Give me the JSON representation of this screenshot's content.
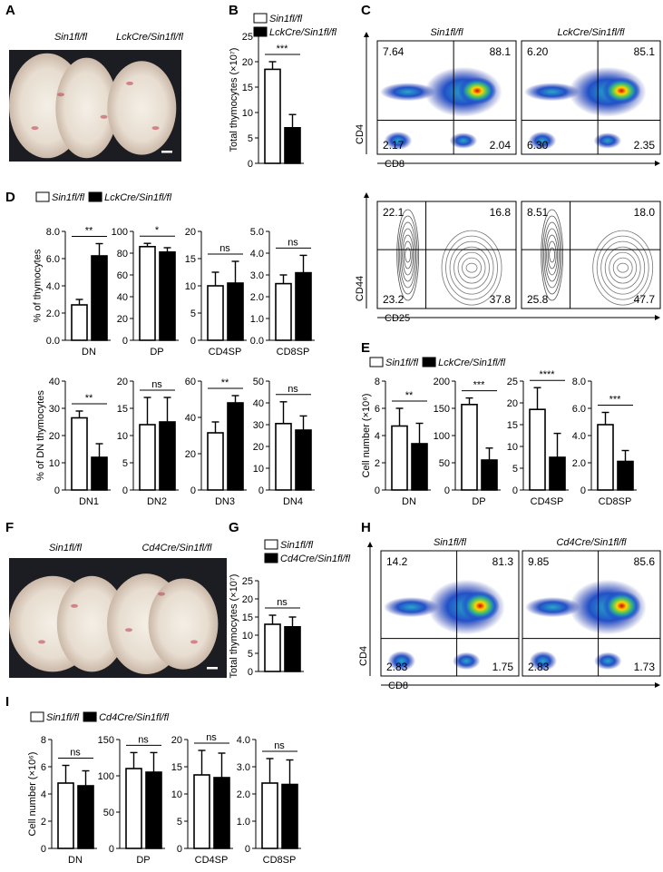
{
  "panel_letters": [
    "A",
    "B",
    "C",
    "D",
    "E",
    "F",
    "G",
    "H",
    "I"
  ],
  "photos": [
    {
      "labels": [
        "Sin1fl/fl",
        "LckCre/Sin1fl/fl"
      ]
    },
    {
      "labels": [
        "Sin1fl/fl",
        "Cd4Cre/Sin1fl/fl"
      ]
    }
  ],
  "legends": [
    {
      "items": [
        "Sin1fl/fl",
        "LckCre/Sin1fl/fl"
      ]
    },
    {
      "items": [
        "Sin1fl/fl",
        "LckCre/Sin1fl/fl"
      ]
    },
    {
      "items": [
        "Sin1fl/fl",
        "LckCre/Sin1fl/fl"
      ]
    },
    {
      "items": [
        "Sin1fl/fl",
        "Cd4Cre/Sin1fl/fl"
      ]
    },
    {
      "items": [
        "Sin1fl/fl",
        "Cd4Cre/Sin1fl/fl"
      ]
    }
  ],
  "flow": [
    {
      "style": "density",
      "x_label": "CD8",
      "y_label": "CD4",
      "plots": [
        {
          "title": "Sin1fl/fl",
          "quadrants": [
            "7.64",
            "88.1",
            "2.17",
            "2.04"
          ]
        },
        {
          "title": "LckCre/Sin1fl/fl",
          "quadrants": [
            "6.20",
            "85.1",
            "6.30",
            "2.35"
          ]
        }
      ]
    },
    {
      "style": "contour",
      "x_label": "CD25",
      "y_label": "CD44",
      "plots": [
        {
          "quadrants": [
            "22.1",
            "16.8",
            "23.2",
            "37.8"
          ]
        },
        {
          "quadrants": [
            "8.51",
            "18.0",
            "25.8",
            "47.7"
          ]
        }
      ]
    },
    {
      "style": "density",
      "x_label": "CD8",
      "y_label": "CD4",
      "plots": [
        {
          "title": "Sin1fl/fl",
          "quadrants": [
            "14.2",
            "81.3",
            "2.83",
            "1.75"
          ]
        },
        {
          "title": "Cd4Cre/Sin1fl/fl",
          "quadrants": [
            "9.85",
            "85.6",
            "2.83",
            "1.73"
          ]
        }
      ]
    }
  ],
  "chart_data": [
    {
      "type": "bar",
      "ylabel": "Total thymocytes (×10⁷)",
      "annotation": "***",
      "ylim": [
        0,
        25
      ],
      "yticks": [
        0,
        5,
        10,
        15,
        20,
        25
      ],
      "series": [
        {
          "color": "#ffffff",
          "values": [
            18.5
          ],
          "errors": [
            1.5
          ]
        },
        {
          "color": "#000000",
          "values": [
            7
          ],
          "errors": [
            2.6
          ]
        }
      ]
    },
    {
      "type": "bar",
      "ylabel": "% of thymocytes",
      "categories": [
        "DN"
      ],
      "annotation": "**",
      "ylim": [
        0,
        8
      ],
      "yticks": [
        {
          "value": 0,
          "label": "0.0"
        },
        {
          "value": 2,
          "label": "2.0"
        },
        {
          "value": 4,
          "label": "4.0"
        },
        {
          "value": 6,
          "label": "6.0"
        },
        {
          "value": 8,
          "label": "8.0"
        }
      ],
      "series": [
        {
          "color": "#ffffff",
          "values": [
            2.6
          ],
          "errors": [
            0.4
          ]
        },
        {
          "color": "#000000",
          "values": [
            6.2
          ],
          "errors": [
            0.9
          ]
        }
      ]
    },
    {
      "type": "bar",
      "categories": [
        "DP"
      ],
      "annotation": "*",
      "ylim": [
        0,
        100
      ],
      "yticks": [
        0,
        20,
        40,
        60,
        80,
        100
      ],
      "series": [
        {
          "color": "#ffffff",
          "values": [
            86
          ],
          "errors": [
            3
          ]
        },
        {
          "color": "#000000",
          "values": [
            81
          ],
          "errors": [
            4
          ]
        }
      ]
    },
    {
      "type": "bar",
      "categories": [
        "CD4SP"
      ],
      "annotation": "ns",
      "ylim": [
        0,
        20
      ],
      "yticks": [
        0,
        5,
        10,
        15,
        20
      ],
      "series": [
        {
          "color": "#ffffff",
          "values": [
            10
          ],
          "errors": [
            2.5
          ]
        },
        {
          "color": "#000000",
          "values": [
            10.5
          ],
          "errors": [
            4
          ]
        }
      ]
    },
    {
      "type": "bar",
      "categories": [
        "CD8SP"
      ],
      "annotation": "ns",
      "ylim": [
        0,
        5
      ],
      "yticks": [
        {
          "value": 0,
          "label": "0.0"
        },
        {
          "value": 1,
          "label": "1.0"
        },
        {
          "value": 2,
          "label": "2.0"
        },
        {
          "value": 3,
          "label": "3.0"
        },
        {
          "value": 4,
          "label": "4.0"
        },
        {
          "value": 5,
          "label": "5.0"
        }
      ],
      "series": [
        {
          "color": "#ffffff",
          "values": [
            2.6
          ],
          "errors": [
            0.4
          ]
        },
        {
          "color": "#000000",
          "values": [
            3.1
          ],
          "errors": [
            0.8
          ]
        }
      ]
    },
    {
      "type": "bar",
      "ylabel": "% of DN thymocytes",
      "categories": [
        "DN1"
      ],
      "annotation": "**",
      "ylim": [
        0,
        40
      ],
      "yticks": [
        0,
        10,
        20,
        30,
        40
      ],
      "series": [
        {
          "color": "#ffffff",
          "values": [
            26.5
          ],
          "errors": [
            2.5
          ]
        },
        {
          "color": "#000000",
          "values": [
            12
          ],
          "errors": [
            5
          ]
        }
      ]
    },
    {
      "type": "bar",
      "categories": [
        "DN2"
      ],
      "annotation": "ns",
      "ylim": [
        0,
        20
      ],
      "yticks": [
        0,
        5,
        10,
        15,
        20
      ],
      "series": [
        {
          "color": "#ffffff",
          "values": [
            12
          ],
          "errors": [
            5
          ]
        },
        {
          "color": "#000000",
          "values": [
            12.5
          ],
          "errors": [
            4.5
          ]
        }
      ]
    },
    {
      "type": "bar",
      "categories": [
        "DN3"
      ],
      "annotation": "**",
      "ylim": [
        0,
        60
      ],
      "yticks": [
        0,
        20,
        40,
        60
      ],
      "series": [
        {
          "color": "#ffffff",
          "values": [
            31.5
          ],
          "errors": [
            6
          ]
        },
        {
          "color": "#000000",
          "values": [
            48
          ],
          "errors": [
            4
          ]
        }
      ]
    },
    {
      "type": "bar",
      "categories": [
        "DN4"
      ],
      "annotation": "ns",
      "ylim": [
        0,
        50
      ],
      "yticks": [
        0,
        10,
        20,
        30,
        40,
        50
      ],
      "series": [
        {
          "color": "#ffffff",
          "values": [
            30.5
          ],
          "errors": [
            10
          ]
        },
        {
          "color": "#000000",
          "values": [
            27.5
          ],
          "errors": [
            6.5
          ]
        }
      ]
    },
    {
      "type": "bar",
      "ylabel": "Cell number (×10⁶)",
      "categories": [
        "DN"
      ],
      "annotation": "**",
      "ylim": [
        0,
        8
      ],
      "yticks": [
        0,
        2,
        4,
        6,
        8
      ],
      "series": [
        {
          "color": "#ffffff",
          "values": [
            4.7
          ],
          "errors": [
            1.3
          ]
        },
        {
          "color": "#000000",
          "values": [
            3.4
          ],
          "errors": [
            1.5
          ]
        }
      ]
    },
    {
      "type": "bar",
      "categories": [
        "DP"
      ],
      "annotation": "***",
      "ylim": [
        0,
        200
      ],
      "yticks": [
        0,
        50,
        100,
        150,
        200
      ],
      "series": [
        {
          "color": "#ffffff",
          "values": [
            157
          ],
          "errors": [
            12
          ]
        },
        {
          "color": "#000000",
          "values": [
            55
          ],
          "errors": [
            22
          ]
        }
      ]
    },
    {
      "type": "bar",
      "categories": [
        "CD4SP"
      ],
      "annotation": "****",
      "ylim": [
        0,
        25
      ],
      "yticks": [
        0,
        5,
        10,
        15,
        20,
        25
      ],
      "series": [
        {
          "color": "#ffffff",
          "values": [
            18.5
          ],
          "errors": [
            5
          ]
        },
        {
          "color": "#000000",
          "values": [
            7.5
          ],
          "errors": [
            5.5
          ]
        }
      ]
    },
    {
      "type": "bar",
      "categories": [
        "CD8SP"
      ],
      "annotation": "***",
      "ylim": [
        0,
        8
      ],
      "yticks": [
        0,
        {
          "value": 2,
          "label": "2.0"
        },
        {
          "value": 4,
          "label": "4.0"
        },
        {
          "value": 6,
          "label": "6.0"
        },
        {
          "value": 8,
          "label": "8.0"
        }
      ],
      "series": [
        {
          "color": "#ffffff",
          "values": [
            4.8
          ],
          "errors": [
            0.9
          ]
        },
        {
          "color": "#000000",
          "values": [
            2.1
          ],
          "errors": [
            0.8
          ]
        }
      ]
    },
    {
      "type": "bar",
      "ylabel": "Total thymocytes (×10⁷)",
      "annotation": "ns",
      "ylim": [
        0,
        25
      ],
      "yticks": [
        0,
        5,
        10,
        15,
        20,
        25
      ],
      "series": [
        {
          "color": "#ffffff",
          "values": [
            13
          ],
          "errors": [
            2.5
          ]
        },
        {
          "color": "#000000",
          "values": [
            12.3
          ],
          "errors": [
            2.7
          ]
        }
      ]
    },
    {
      "type": "bar",
      "ylabel": "Cell number (×10⁶)",
      "categories": [
        "DN"
      ],
      "annotation": "ns",
      "ylim": [
        0,
        8
      ],
      "yticks": [
        0,
        2,
        4,
        6,
        8
      ],
      "series": [
        {
          "color": "#ffffff",
          "values": [
            4.8
          ],
          "errors": [
            1.3
          ]
        },
        {
          "color": "#000000",
          "values": [
            4.6
          ],
          "errors": [
            1.1
          ]
        }
      ]
    },
    {
      "type": "bar",
      "categories": [
        "DP"
      ],
      "annotation": "ns",
      "ylim": [
        0,
        150
      ],
      "yticks": [
        0,
        50,
        100,
        150
      ],
      "series": [
        {
          "color": "#ffffff",
          "values": [
            110
          ],
          "errors": [
            22
          ]
        },
        {
          "color": "#000000",
          "values": [
            105
          ],
          "errors": [
            27
          ]
        }
      ]
    },
    {
      "type": "bar",
      "categories": [
        "CD4SP"
      ],
      "annotation": "ns",
      "ylim": [
        0,
        20
      ],
      "yticks": [
        0,
        5,
        10,
        15,
        20
      ],
      "series": [
        {
          "color": "#ffffff",
          "values": [
            13.5
          ],
          "errors": [
            4.5
          ]
        },
        {
          "color": "#000000",
          "values": [
            13
          ],
          "errors": [
            4.5
          ]
        }
      ]
    },
    {
      "type": "bar",
      "categories": [
        "CD8SP"
      ],
      "annotation": "ns",
      "ylim": [
        0,
        4
      ],
      "yticks": [
        0,
        {
          "value": 1,
          "label": "1.0"
        },
        {
          "value": 2,
          "label": "2.0"
        },
        {
          "value": 3,
          "label": "3.0"
        },
        {
          "value": 4,
          "label": "4.0"
        }
      ],
      "series": [
        {
          "color": "#ffffff",
          "values": [
            2.4
          ],
          "errors": [
            0.9
          ]
        },
        {
          "color": "#000000",
          "values": [
            2.35
          ],
          "errors": [
            0.9
          ]
        }
      ]
    }
  ]
}
